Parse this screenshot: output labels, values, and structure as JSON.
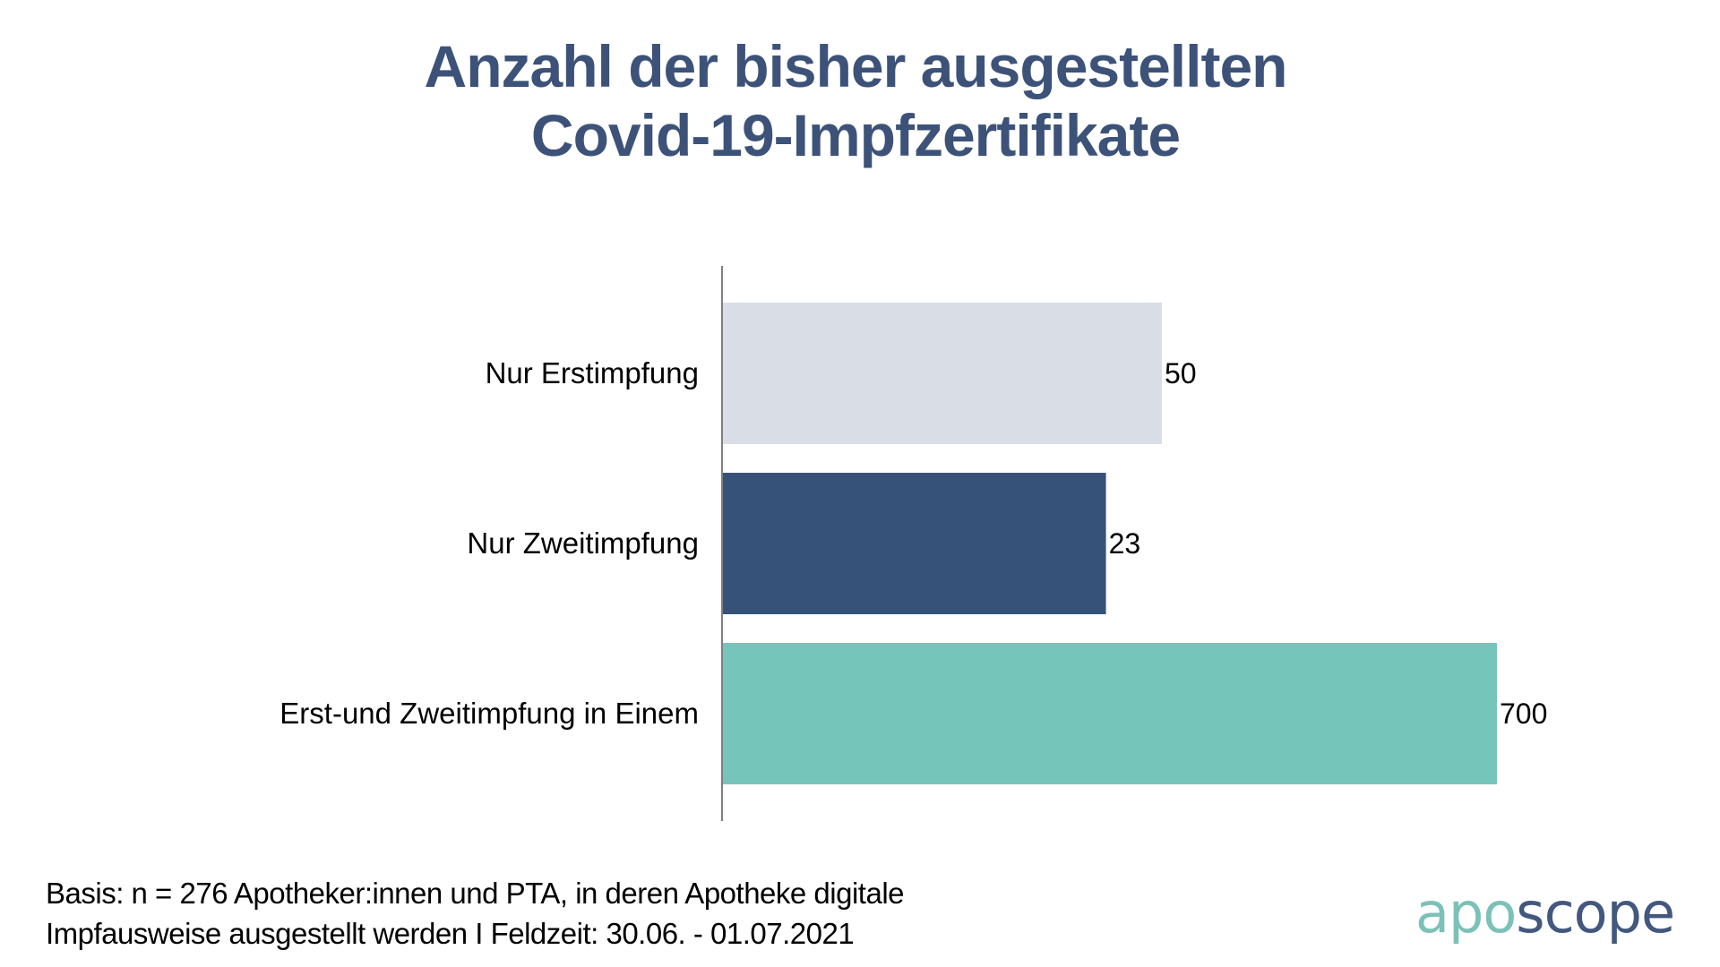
{
  "chart_data": {
    "type": "bar",
    "orientation": "horizontal",
    "title": "Anzahl der bisher ausgestellten Covid-19-Impfzertifikate",
    "title_lines": [
      "Anzahl der bisher ausgestellten",
      "Covid-19-Impfzertifikate"
    ],
    "categories": [
      "Nur Erstimpfung",
      "Nur Zweitimpfung",
      "Erst-und Zweitimpfung in Einem"
    ],
    "values": [
      50,
      23,
      700
    ],
    "value_labels": [
      "50",
      "23",
      "700"
    ],
    "bar_colors": [
      "#d9dde6",
      "#375279",
      "#76c5bb"
    ],
    "xlabel": "",
    "ylabel": "",
    "grid": false,
    "legend": "none",
    "note": "Bar lengths are stylized and not proportional to values"
  },
  "footer": {
    "lines": [
      "Basis: n = 276 Apotheker:innen und PTA, in deren Apotheke digitale",
      "Impfausweise ausgestellt werden I Feldzeit: 30.06. - 01.07.2021"
    ]
  },
  "logo": {
    "part1": "apo",
    "part2": "scope",
    "color1": "#7cc1b8",
    "color2": "#42587e"
  },
  "colors": {
    "title": "#3d5278",
    "axis": "#555555"
  }
}
